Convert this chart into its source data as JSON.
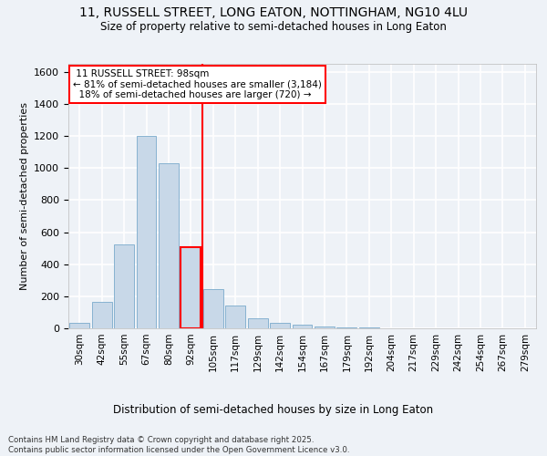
{
  "title1": "11, RUSSELL STREET, LONG EATON, NOTTINGHAM, NG10 4LU",
  "title2": "Size of property relative to semi-detached houses in Long Eaton",
  "xlabel": "Distribution of semi-detached houses by size in Long Eaton",
  "ylabel": "Number of semi-detached properties",
  "categories": [
    "30sqm",
    "42sqm",
    "55sqm",
    "67sqm",
    "80sqm",
    "92sqm",
    "105sqm",
    "117sqm",
    "129sqm",
    "142sqm",
    "154sqm",
    "167sqm",
    "179sqm",
    "192sqm",
    "204sqm",
    "217sqm",
    "229sqm",
    "242sqm",
    "254sqm",
    "267sqm",
    "279sqm"
  ],
  "values": [
    35,
    165,
    525,
    1200,
    1030,
    505,
    245,
    140,
    65,
    35,
    25,
    10,
    5,
    5,
    0,
    0,
    0,
    0,
    0,
    0,
    0
  ],
  "property_label": "11 RUSSELL STREET: 98sqm",
  "pct_smaller": 81,
  "n_smaller": 3184,
  "pct_larger": 18,
  "n_larger": 720,
  "bar_color": "#c8d8e8",
  "bar_edge_color": "#7aaacc",
  "highlight_bar_edge_color": "red",
  "vline_color": "red",
  "vline_x_index": 5.5,
  "ylim": [
    0,
    1650
  ],
  "footer": "Contains HM Land Registry data © Crown copyright and database right 2025.\nContains public sector information licensed under the Open Government Licence v3.0.",
  "bg_color": "#eef2f7",
  "grid_color": "white"
}
